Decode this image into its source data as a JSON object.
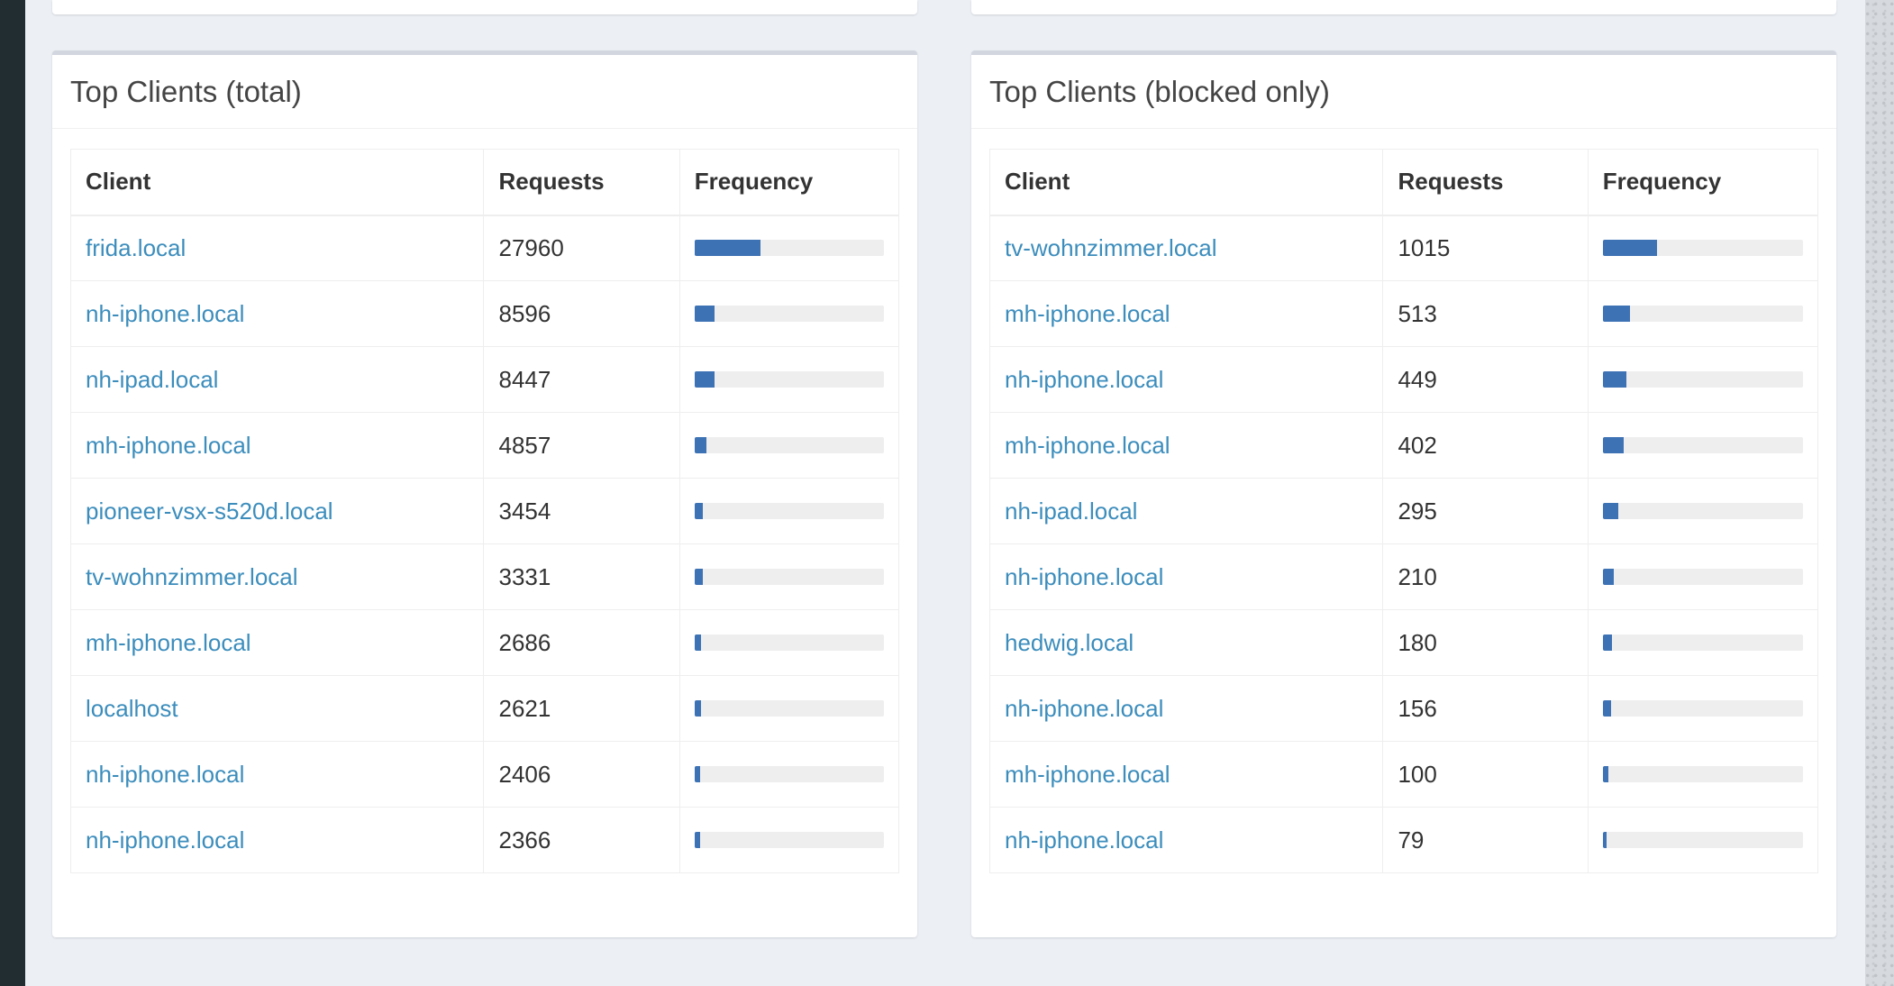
{
  "panels": [
    {
      "title": "Top Clients (total)",
      "columns": {
        "client": "Client",
        "requests": "Requests",
        "frequency": "Frequency"
      },
      "rows": [
        {
          "client": "frida.local",
          "requests": "27960",
          "frequency_pct": 35
        },
        {
          "client": "nh-iphone.local",
          "requests": "8596",
          "frequency_pct": 10.8
        },
        {
          "client": "nh-ipad.local",
          "requests": "8447",
          "frequency_pct": 10.6
        },
        {
          "client": "mh-iphone.local",
          "requests": "4857",
          "frequency_pct": 6.1
        },
        {
          "client": "pioneer-vsx-s520d.local",
          "requests": "3454",
          "frequency_pct": 4.3
        },
        {
          "client": "tv-wohnzimmer.local",
          "requests": "3331",
          "frequency_pct": 4.2
        },
        {
          "client": "mh-iphone.local",
          "requests": "2686",
          "frequency_pct": 3.4
        },
        {
          "client": "localhost",
          "requests": "2621",
          "frequency_pct": 3.3
        },
        {
          "client": "nh-iphone.local",
          "requests": "2406",
          "frequency_pct": 3.0
        },
        {
          "client": "nh-iphone.local",
          "requests": "2366",
          "frequency_pct": 3.0
        }
      ]
    },
    {
      "title": "Top Clients (blocked only)",
      "columns": {
        "client": "Client",
        "requests": "Requests",
        "frequency": "Frequency"
      },
      "rows": [
        {
          "client": "tv-wohnzimmer.local",
          "requests": "1015",
          "frequency_pct": 27
        },
        {
          "client": "mh-iphone.local",
          "requests": "513",
          "frequency_pct": 13.6
        },
        {
          "client": "nh-iphone.local",
          "requests": "449",
          "frequency_pct": 11.9
        },
        {
          "client": "mh-iphone.local",
          "requests": "402",
          "frequency_pct": 10.7
        },
        {
          "client": "nh-ipad.local",
          "requests": "295",
          "frequency_pct": 7.8
        },
        {
          "client": "nh-iphone.local",
          "requests": "210",
          "frequency_pct": 5.6
        },
        {
          "client": "hedwig.local",
          "requests": "180",
          "frequency_pct": 4.8
        },
        {
          "client": "nh-iphone.local",
          "requests": "156",
          "frequency_pct": 4.1
        },
        {
          "client": "mh-iphone.local",
          "requests": "100",
          "frequency_pct": 2.7
        },
        {
          "client": "nh-iphone.local",
          "requests": "79",
          "frequency_pct": 2.1
        }
      ]
    }
  ],
  "colors": {
    "link": "#3c8dbc",
    "bar": "#3d72b4",
    "bar_track": "#eeeeee",
    "page_background": "#ecf0f5",
    "sidebar": "#222d32"
  }
}
